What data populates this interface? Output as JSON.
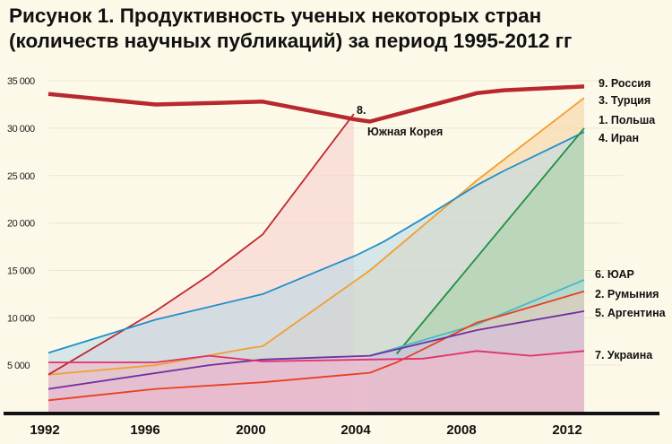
{
  "title_line1": "Рисунок 1. Продуктивность ученых некоторых стран",
  "title_line2": "(количеств научных публикаций) за период 1995-2012 гг",
  "chart_data": {
    "type": "area",
    "title": "Рисунок 1. Продуктивность ученых некоторых стран (количеств научных публикаций) за период 1995-2012 гг",
    "xlabel": "",
    "ylabel": "",
    "xlim": [
      1992,
      2012
    ],
    "ylim": [
      0,
      35000
    ],
    "xticks": [
      "1992",
      "1996",
      "2000",
      "2004",
      "2008",
      "2012"
    ],
    "yticks": [
      "5 000",
      "10 000",
      "15 000",
      "20 000",
      "25 000",
      "30 000",
      "35 000"
    ],
    "grid": true,
    "series": [
      {
        "name": "Турция",
        "label": "3.  Турция",
        "color": "#f0a030",
        "fill": "#f6cf9a",
        "points": [
          [
            1992,
            4000
          ],
          [
            1996,
            5000
          ],
          [
            1999.5,
            6800
          ],
          [
            2000,
            7000
          ],
          [
            2004,
            15000
          ],
          [
            2008,
            24500
          ],
          [
            2012,
            33200
          ]
        ]
      },
      {
        "name": "Южная Корея",
        "label_num": "8.",
        "label": "Южная Корея",
        "color": "#c0282e",
        "fill": "#f5cccc",
        "points": [
          [
            1992,
            4000
          ],
          [
            1996,
            10700
          ],
          [
            1998,
            14500
          ],
          [
            2000,
            18800
          ],
          [
            2003.4,
            31500
          ]
        ]
      },
      {
        "name": "Польша",
        "label": "1.  Польша",
        "color": "#1e8ec8",
        "fill": "#b8d8e8",
        "points": [
          [
            1992,
            6300
          ],
          [
            1996,
            9800
          ],
          [
            2000,
            12500
          ],
          [
            2003.5,
            16600
          ],
          [
            2004.5,
            18000
          ],
          [
            2006,
            20500
          ],
          [
            2008,
            24000
          ],
          [
            2009,
            25500
          ],
          [
            2012,
            29600
          ]
        ]
      },
      {
        "name": "Иран",
        "label": "4.  Иран",
        "color": "#1e9040",
        "fill": "#a8d0a8",
        "points": [
          [
            2005,
            6200
          ],
          [
            2012,
            30000
          ]
        ]
      },
      {
        "name": "ЮАР",
        "label": "6.  ЮАР",
        "color": "#4cb8c0",
        "fill": "#a8dcd8",
        "points": [
          [
            2004,
            6000
          ],
          [
            2008,
            9300
          ],
          [
            2012,
            14000
          ]
        ]
      },
      {
        "name": "Румыния",
        "label": "2. Румыния",
        "color": "#e84020",
        "fill": "#f0c8b8",
        "points": [
          [
            1992,
            1300
          ],
          [
            1996,
            2500
          ],
          [
            2000,
            3200
          ],
          [
            2004,
            4200
          ],
          [
            2005,
            5300
          ],
          [
            2008,
            9500
          ],
          [
            2009,
            10300
          ],
          [
            2012,
            12800
          ]
        ]
      },
      {
        "name": "Аргентина",
        "label": "5. Аргентина",
        "color": "#7030a0",
        "fill": "#d8b8e0",
        "points": [
          [
            1992,
            2500
          ],
          [
            1998,
            5000
          ],
          [
            2000,
            5600
          ],
          [
            2004,
            6000
          ],
          [
            2008,
            8700
          ],
          [
            2012,
            10700
          ]
        ]
      },
      {
        "name": "Украина",
        "label": "7.  Украина",
        "color": "#e0306a",
        "fill": "#f0b8c8",
        "points": [
          [
            1992,
            5300
          ],
          [
            1996,
            5300
          ],
          [
            1998,
            6000
          ],
          [
            2000,
            5400
          ],
          [
            2004,
            5600
          ],
          [
            2006,
            5700
          ],
          [
            2008,
            6500
          ],
          [
            2010,
            6000
          ],
          [
            2012,
            6500
          ]
        ]
      },
      {
        "name": "Россия",
        "label": "9.  Россия",
        "color": "#b8282e",
        "fill": "none",
        "points": [
          [
            1992,
            33600
          ],
          [
            1996,
            32500
          ],
          [
            2000,
            32800
          ],
          [
            2003.5,
            30900
          ],
          [
            2004,
            30700
          ],
          [
            2008,
            33700
          ],
          [
            2009,
            34000
          ],
          [
            2012,
            34400
          ]
        ]
      }
    ]
  }
}
